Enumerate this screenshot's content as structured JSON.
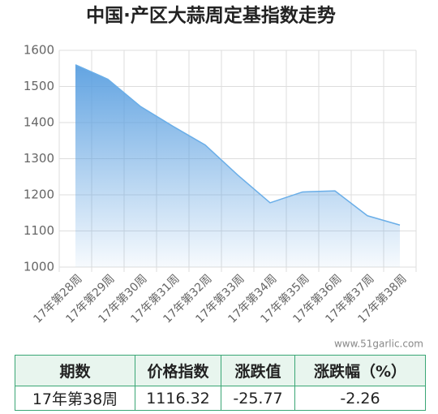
{
  "chart_data": {
    "type": "area",
    "title": "中国·产区大蒜周定基指数走势",
    "categories": [
      "17年第28周",
      "17年第29周",
      "17年第30周",
      "17年第31周",
      "17年第32周",
      "17年第33周",
      "17年第34周",
      "17年第35周",
      "17年第36周",
      "17年第37周",
      "17年第38周"
    ],
    "values": [
      1560,
      1520,
      1445,
      1390,
      1338,
      1255,
      1178,
      1208,
      1211,
      1142.09,
      1116.32
    ],
    "color": "#6aaee8",
    "ylim": [
      1000,
      1600
    ],
    "yticks": [
      1000,
      1100,
      1200,
      1300,
      1400,
      1500,
      1600
    ],
    "grid": true,
    "watermark": "www.51garlic.com"
  },
  "table": {
    "header": [
      "期数",
      "价格指数",
      "涨跌值",
      "涨跌幅（%）"
    ],
    "rows": [
      [
        "17年第38周",
        "1116.32",
        "-25.77",
        "-2.26"
      ]
    ]
  }
}
